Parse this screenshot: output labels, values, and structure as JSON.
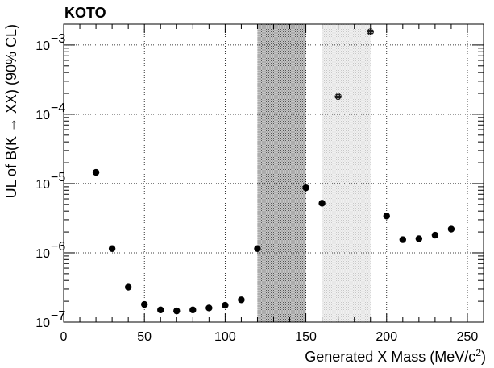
{
  "chart_data": {
    "type": "scatter",
    "title": "KOTO",
    "xlabel": "Generated X Mass (MeV/c²)",
    "ylabel": "UL of B(K → XX) (90% CL)",
    "xlim": [
      0,
      260
    ],
    "ylim": [
      1e-07,
      0.002
    ],
    "yscale": "log",
    "grid": true,
    "x_ticks": [
      0,
      50,
      100,
      150,
      200,
      250
    ],
    "y_ticks": [
      {
        "value": 1e-07,
        "mantissa": "10",
        "exp": "−7"
      },
      {
        "value": 1e-06,
        "mantissa": "10",
        "exp": "−6"
      },
      {
        "value": 1e-05,
        "mantissa": "10",
        "exp": "−5"
      },
      {
        "value": 0.0001,
        "mantissa": "10",
        "exp": "−4"
      },
      {
        "value": 0.001,
        "mantissa": "10",
        "exp": "−3"
      }
    ],
    "bands": [
      {
        "x": [
          120,
          150
        ],
        "color": "#b0b0b0",
        "pattern": "dense"
      },
      {
        "x": [
          160,
          190
        ],
        "color": "#dcdcdc",
        "pattern": "light"
      }
    ],
    "series": [
      {
        "marker": "filled-circle",
        "x": [
          20,
          30,
          40,
          50,
          60,
          70,
          80,
          90,
          100,
          110,
          120,
          150,
          160,
          170,
          190,
          200,
          210,
          220,
          230,
          240
        ],
        "y": [
          1.45e-05,
          1.15e-06,
          3.2e-07,
          1.8e-07,
          1.5e-07,
          1.45e-07,
          1.5e-07,
          1.6e-07,
          1.75e-07,
          2.1e-07,
          1.15e-06,
          8.7e-06,
          5.2e-06,
          0.00018,
          0.00155,
          3.4e-06,
          1.55e-06,
          1.6e-06,
          1.8e-06,
          2.2e-06
        ],
        "hatched": [
          false,
          false,
          false,
          false,
          false,
          false,
          false,
          false,
          false,
          false,
          false,
          false,
          false,
          true,
          true,
          false,
          false,
          false,
          false,
          false
        ]
      }
    ]
  }
}
